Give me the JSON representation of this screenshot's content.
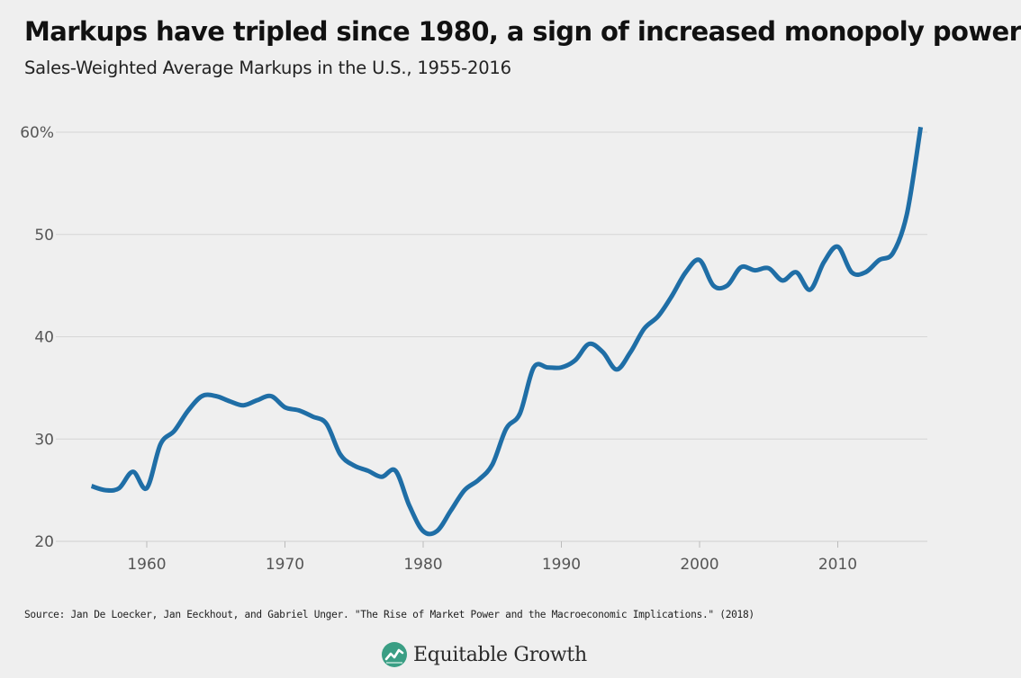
{
  "header": {
    "title": "Markups have tripled since 1980, a sign of increased monopoly power",
    "subtitle": "Sales-Weighted Average Markups in the U.S., 1955-2016"
  },
  "footer": {
    "source": "Source: Jan De Loecker, Jan Eeckhout, and Gabriel Unger. \"The Rise of Market Power and the Macroeconomic Implications.\" (2018)",
    "brand": "Equitable Growth",
    "logo_icon": "equitable-growth-logo-icon"
  },
  "colors": {
    "line": "#1f6ea6",
    "background": "#efefef",
    "grid": "#d6d6d6",
    "logo": "#3a9e84"
  },
  "chart_data": {
    "type": "line",
    "title": "Sales-Weighted Average Markups in the U.S., 1955-2016",
    "xlabel": "",
    "ylabel": "",
    "xlim": [
      1954,
      2016
    ],
    "ylim": [
      20,
      60
    ],
    "grid": true,
    "y_ticks": [
      20,
      30,
      40,
      50,
      60
    ],
    "y_tick_labels": [
      "20",
      "30",
      "40",
      "50",
      "60%"
    ],
    "x_ticks": [
      1960,
      1970,
      1980,
      1990,
      2000,
      2010
    ],
    "x_tick_labels": [
      "1960",
      "1970",
      "1980",
      "1990",
      "2000",
      "2010"
    ],
    "series": [
      {
        "x": [
          1956,
          1957,
          1958,
          1959,
          1960,
          1961,
          1962,
          1963,
          1964,
          1965,
          1966,
          1967,
          1968,
          1969,
          1970,
          1971,
          1972,
          1973,
          1974,
          1975,
          1976,
          1977,
          1978,
          1979,
          1980,
          1981,
          1982,
          1983,
          1984,
          1985,
          1986,
          1987,
          1988,
          1989,
          1990,
          1991,
          1992,
          1993,
          1994,
          1995,
          1996,
          1997,
          1998,
          1999,
          2000,
          2001,
          2002,
          2003,
          2004,
          2005,
          2006,
          2007,
          2008,
          2009,
          2010,
          2011,
          2012,
          2013,
          2014,
          2015,
          2016
        ],
        "values": [
          25.4,
          25.0,
          25.2,
          26.8,
          25.2,
          29.5,
          30.8,
          32.8,
          34.2,
          34.2,
          33.7,
          33.3,
          33.8,
          34.2,
          33.1,
          32.8,
          32.2,
          31.5,
          28.5,
          27.4,
          26.9,
          26.3,
          26.9,
          23.5,
          21.0,
          21.0,
          23.0,
          25.0,
          26.0,
          27.5,
          31.0,
          32.5,
          37.0,
          37.0,
          37.0,
          37.7,
          39.3,
          38.5,
          36.8,
          38.5,
          40.8,
          42.0,
          44.0,
          46.3,
          47.5,
          45.0,
          45.0,
          46.8,
          46.5,
          46.7,
          45.5,
          46.3,
          44.6,
          47.3,
          48.8,
          46.3,
          46.3,
          47.5,
          48.2,
          52.0,
          60.5
        ]
      }
    ]
  }
}
